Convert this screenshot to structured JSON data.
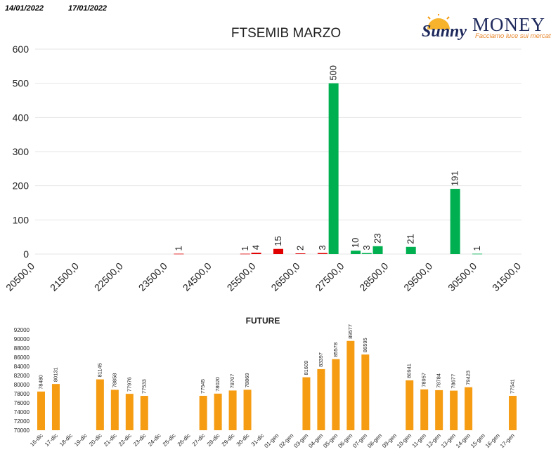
{
  "header": {
    "date_from": "14/01/2022",
    "date_to": "17/01/2022"
  },
  "logo": {
    "name": "MONEY",
    "script": "Sunny",
    "tagline": "Facciamo luce sui mercati"
  },
  "colors": {
    "green": "#00b050",
    "red": "#e00000",
    "orange": "#f59c12",
    "grid": "#e6e6e6"
  },
  "chart_data": [
    {
      "type": "bar",
      "title": "FTSEMIB MARZO",
      "ylim": [
        0,
        600
      ],
      "yticks": [
        "0",
        "100",
        "200",
        "300",
        "400",
        "500",
        "600"
      ],
      "categories": [
        "20500,0",
        "21500,0",
        "22500,0",
        "23500,0",
        "24500,0",
        "25500,0",
        "26500,0",
        "27500,0",
        "28500,0",
        "29500,0",
        "30500,0",
        "31500,0"
      ],
      "grid": true,
      "bars": [
        {
          "x": 23750,
          "value": 1,
          "label": "1",
          "series": "put"
        },
        {
          "x": 25250,
          "value": 1,
          "label": "1",
          "series": "put"
        },
        {
          "x": 25500,
          "value": 4,
          "label": "4",
          "series": "put"
        },
        {
          "x": 26000,
          "value": 15,
          "label": "15",
          "series": "put"
        },
        {
          "x": 26500,
          "value": 2,
          "label": "2",
          "series": "put"
        },
        {
          "x": 27000,
          "value": 3,
          "label": "3",
          "series": "put"
        },
        {
          "x": 27250,
          "value": 500,
          "label": "500",
          "series": "call"
        },
        {
          "x": 27750,
          "value": 10,
          "label": "10",
          "series": "call"
        },
        {
          "x": 28000,
          "value": 3,
          "label": "3",
          "series": "call"
        },
        {
          "x": 28250,
          "value": 23,
          "label": "23",
          "series": "call"
        },
        {
          "x": 29000,
          "value": 21,
          "label": "21",
          "series": "call"
        },
        {
          "x": 30000,
          "value": 191,
          "label": "191",
          "series": "call"
        },
        {
          "x": 30500,
          "value": 1,
          "label": "1",
          "series": "call"
        }
      ]
    },
    {
      "type": "bar",
      "title": "FUTURE",
      "ylim": [
        70000,
        92000
      ],
      "yticks": [
        "70000",
        "72000",
        "74000",
        "76000",
        "78000",
        "80000",
        "82000",
        "84000",
        "86000",
        "88000",
        "90000",
        "92000"
      ],
      "categories": [
        "16-dic",
        "17-dic",
        "18-dic",
        "19-dic",
        "20-dic",
        "21-dic",
        "22-dic",
        "23-dic",
        "24-dic",
        "25-dic",
        "26-dic",
        "27-dic",
        "28-dic",
        "29-dic",
        "30-dic",
        "31-dic",
        "01-gen",
        "02-gen",
        "03-gen",
        "04-gen",
        "05-gen",
        "06-gen",
        "07-gen",
        "08-gen",
        "09-gen",
        "10-gen",
        "11-gen",
        "12-gen",
        "13-gen",
        "14-gen",
        "15-gen",
        "16-gen",
        "17-gen"
      ],
      "values": [
        78480,
        80131,
        null,
        null,
        81145,
        78858,
        77976,
        77533,
        null,
        null,
        null,
        77545,
        78020,
        78707,
        78869,
        null,
        null,
        null,
        81609,
        83397,
        85578,
        89577,
        86595,
        null,
        null,
        80941,
        78957,
        78784,
        78677,
        79423,
        null,
        null,
        77541
      ],
      "labels": [
        "78480",
        "80131",
        "",
        "",
        "81145",
        "78858",
        "77976",
        "77533",
        "",
        "",
        "",
        "77545",
        "78020",
        "78707",
        "78869",
        "",
        "",
        "",
        "81609",
        "83397",
        "85578",
        "89577",
        "86595",
        "",
        "",
        "80941",
        "78957",
        "78784",
        "78677",
        "79423",
        "",
        "",
        "77541"
      ]
    }
  ]
}
